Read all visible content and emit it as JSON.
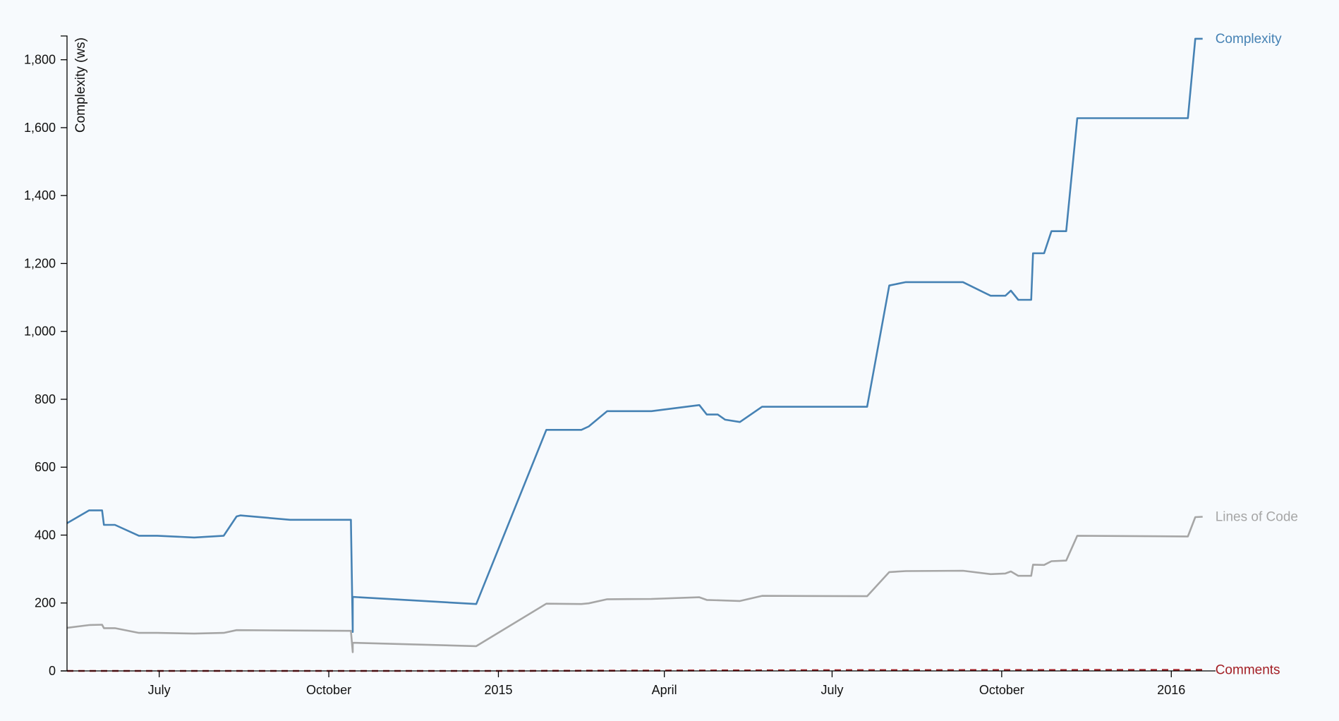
{
  "chart_data": {
    "type": "line",
    "ylabel": "Complexity (ws)",
    "ylim": [
      0,
      1870
    ],
    "xlim": [
      "2014-05-12",
      "2016-01-25"
    ],
    "y_ticks": [
      0,
      200,
      400,
      600,
      800,
      1000,
      1200,
      1400,
      1600,
      1800
    ],
    "y_tick_labels": [
      "0",
      "200",
      "400",
      "600",
      "800",
      "1,000",
      "1,200",
      "1,400",
      "1,600",
      "1,800"
    ],
    "x_ticks": [
      {
        "date": "2014-07-01",
        "label": "July"
      },
      {
        "date": "2014-10-01",
        "label": "October"
      },
      {
        "date": "2015-01-01",
        "label": "2015"
      },
      {
        "date": "2015-04-01",
        "label": "April"
      },
      {
        "date": "2015-07-01",
        "label": "July"
      },
      {
        "date": "2015-10-01",
        "label": "October"
      },
      {
        "date": "2016-01-01",
        "label": "2016"
      }
    ],
    "series": [
      {
        "name": "Complexity",
        "color": "#4682b4",
        "dashed": false,
        "points": [
          [
            "2014-05-12",
            435
          ],
          [
            "2014-05-24",
            473
          ],
          [
            "2014-05-31",
            473
          ],
          [
            "2014-06-01",
            430
          ],
          [
            "2014-06-07",
            430
          ],
          [
            "2014-06-20",
            398
          ],
          [
            "2014-06-30",
            398
          ],
          [
            "2014-07-20",
            393
          ],
          [
            "2014-08-05",
            398
          ],
          [
            "2014-08-12",
            455
          ],
          [
            "2014-08-14",
            458
          ],
          [
            "2014-09-10",
            445
          ],
          [
            "2014-10-13",
            445
          ],
          [
            "2014-10-14",
            115
          ],
          [
            "2014-10-14",
            218
          ],
          [
            "2014-12-20",
            197
          ],
          [
            "2015-01-27",
            710
          ],
          [
            "2015-02-15",
            710
          ],
          [
            "2015-02-19",
            720
          ],
          [
            "2015-03-01",
            765
          ],
          [
            "2015-03-25",
            765
          ],
          [
            "2015-04-20",
            783
          ],
          [
            "2015-04-24",
            755
          ],
          [
            "2015-04-30",
            755
          ],
          [
            "2015-05-04",
            740
          ],
          [
            "2015-05-12",
            733
          ],
          [
            "2015-05-24",
            778
          ],
          [
            "2015-07-20",
            778
          ],
          [
            "2015-08-01",
            1135
          ],
          [
            "2015-08-10",
            1145
          ],
          [
            "2015-09-10",
            1145
          ],
          [
            "2015-09-25",
            1105
          ],
          [
            "2015-10-03",
            1105
          ],
          [
            "2015-10-06",
            1120
          ],
          [
            "2015-10-10",
            1093
          ],
          [
            "2015-10-17",
            1093
          ],
          [
            "2015-10-18",
            1230
          ],
          [
            "2015-10-24",
            1230
          ],
          [
            "2015-10-28",
            1295
          ],
          [
            "2015-11-05",
            1295
          ],
          [
            "2015-11-11",
            1628
          ],
          [
            "2016-01-10",
            1628
          ],
          [
            "2016-01-14",
            1862
          ],
          [
            "2016-01-18",
            1862
          ]
        ]
      },
      {
        "name": "Lines of Code",
        "color": "#a6a6a6",
        "dashed": false,
        "points": [
          [
            "2014-05-12",
            127
          ],
          [
            "2014-05-24",
            135
          ],
          [
            "2014-05-31",
            136
          ],
          [
            "2014-06-01",
            126
          ],
          [
            "2014-06-07",
            126
          ],
          [
            "2014-06-20",
            112
          ],
          [
            "2014-06-30",
            112
          ],
          [
            "2014-07-20",
            110
          ],
          [
            "2014-08-05",
            112
          ],
          [
            "2014-08-12",
            120
          ],
          [
            "2014-09-10",
            119
          ],
          [
            "2014-10-13",
            118
          ],
          [
            "2014-10-14",
            55
          ],
          [
            "2014-10-14",
            83
          ],
          [
            "2014-12-20",
            73
          ],
          [
            "2015-01-27",
            198
          ],
          [
            "2015-02-15",
            197
          ],
          [
            "2015-02-19",
            199
          ],
          [
            "2015-03-01",
            211
          ],
          [
            "2015-03-25",
            212
          ],
          [
            "2015-04-20",
            217
          ],
          [
            "2015-04-24",
            209
          ],
          [
            "2015-05-12",
            206
          ],
          [
            "2015-05-24",
            221
          ],
          [
            "2015-07-20",
            220
          ],
          [
            "2015-08-01",
            291
          ],
          [
            "2015-08-10",
            294
          ],
          [
            "2015-09-10",
            295
          ],
          [
            "2015-09-25",
            285
          ],
          [
            "2015-10-03",
            287
          ],
          [
            "2015-10-06",
            293
          ],
          [
            "2015-10-10",
            280
          ],
          [
            "2015-10-17",
            280
          ],
          [
            "2015-10-18",
            313
          ],
          [
            "2015-10-24",
            312
          ],
          [
            "2015-10-28",
            323
          ],
          [
            "2015-11-05",
            325
          ],
          [
            "2015-11-11",
            398
          ],
          [
            "2016-01-10",
            396
          ],
          [
            "2016-01-14",
            453
          ],
          [
            "2016-01-18",
            454
          ]
        ]
      },
      {
        "name": "Comments",
        "color": "#a31f25",
        "dashed": true,
        "points": [
          [
            "2014-05-12",
            0
          ],
          [
            "2015-01-01",
            0
          ],
          [
            "2015-07-01",
            2
          ],
          [
            "2016-01-18",
            3
          ]
        ]
      }
    ]
  }
}
